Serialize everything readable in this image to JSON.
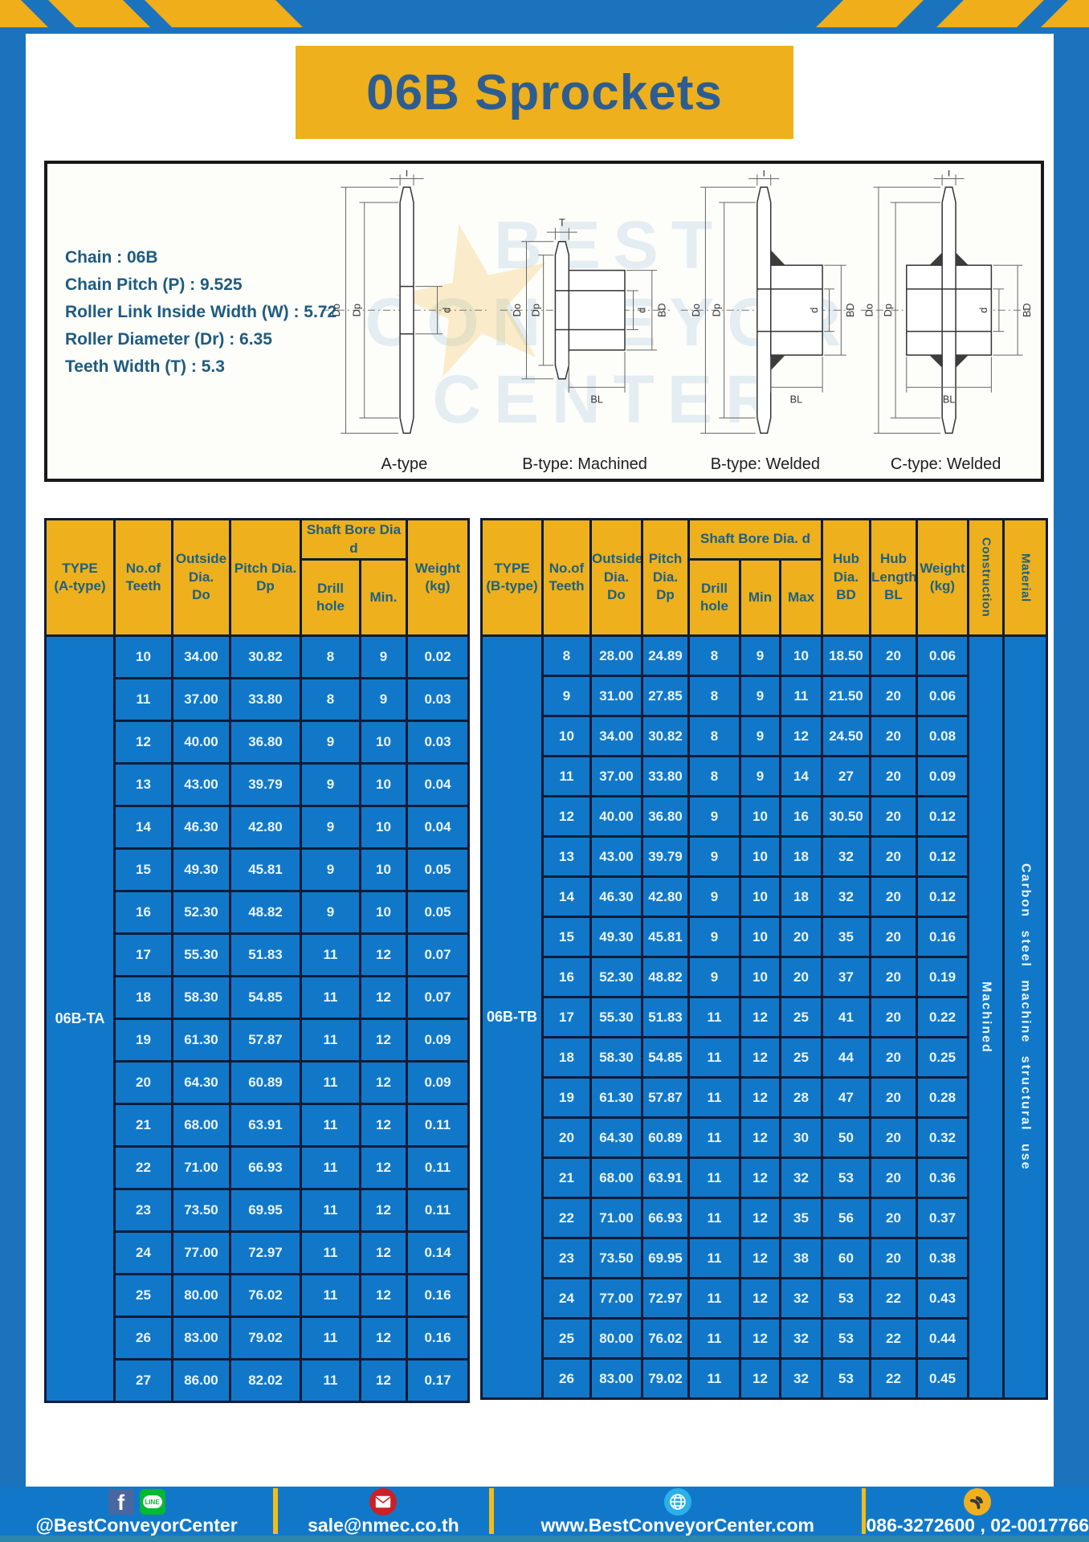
{
  "page": {
    "title": "06B Sprockets"
  },
  "specs": {
    "lines": [
      "Chain : 06B",
      "Chain Pitch (P) : 9.525",
      "Roller Link Inside Width (W) : 5.72",
      "Roller Diameter (Dr) : 6.35",
      "Teeth Width (T) : 5.3"
    ]
  },
  "watermark": {
    "lines": [
      "BEST",
      "CONVEYOR",
      "CENTER"
    ],
    "star": "★"
  },
  "diagram": {
    "dims": {
      "T": "T",
      "Do": "Do",
      "Dp": "Dp",
      "d": "d",
      "BD": "BD",
      "BL": "BL"
    },
    "figures": [
      {
        "caption": "A-type"
      },
      {
        "caption": "B-type: Machined"
      },
      {
        "caption": "B-type: Welded"
      },
      {
        "caption": "C-type: Welded"
      }
    ]
  },
  "table_a": {
    "headers": {
      "type": "TYPE\n(A-type)",
      "teeth": "No.of\nTeeth",
      "outside": "Outside\nDia.\nDo",
      "pitch": "Pitch Dia.\nDp",
      "shaft": "Shaft Bore Dia d",
      "drill": "Drill hole",
      "min": "Min.",
      "weight": "Weight\n(kg)"
    },
    "type_label": "06B-TA",
    "rows": [
      [
        "10",
        "34.00",
        "30.82",
        "8",
        "9",
        "0.02"
      ],
      [
        "11",
        "37.00",
        "33.80",
        "8",
        "9",
        "0.03"
      ],
      [
        "12",
        "40.00",
        "36.80",
        "9",
        "10",
        "0.03"
      ],
      [
        "13",
        "43.00",
        "39.79",
        "9",
        "10",
        "0.04"
      ],
      [
        "14",
        "46.30",
        "42.80",
        "9",
        "10",
        "0.04"
      ],
      [
        "15",
        "49.30",
        "45.81",
        "9",
        "10",
        "0.05"
      ],
      [
        "16",
        "52.30",
        "48.82",
        "9",
        "10",
        "0.05"
      ],
      [
        "17",
        "55.30",
        "51.83",
        "11",
        "12",
        "0.07"
      ],
      [
        "18",
        "58.30",
        "54.85",
        "11",
        "12",
        "0.07"
      ],
      [
        "19",
        "61.30",
        "57.87",
        "11",
        "12",
        "0.09"
      ],
      [
        "20",
        "64.30",
        "60.89",
        "11",
        "12",
        "0.09"
      ],
      [
        "21",
        "68.00",
        "63.91",
        "11",
        "12",
        "0.11"
      ],
      [
        "22",
        "71.00",
        "66.93",
        "11",
        "12",
        "0.11"
      ],
      [
        "23",
        "73.50",
        "69.95",
        "11",
        "12",
        "0.11"
      ],
      [
        "24",
        "77.00",
        "72.97",
        "11",
        "12",
        "0.14"
      ],
      [
        "25",
        "80.00",
        "76.02",
        "11",
        "12",
        "0.16"
      ],
      [
        "26",
        "83.00",
        "79.02",
        "11",
        "12",
        "0.16"
      ],
      [
        "27",
        "86.00",
        "82.02",
        "11",
        "12",
        "0.17"
      ]
    ]
  },
  "table_b": {
    "headers": {
      "type": "TYPE\n(B-type)",
      "teeth": "No.of\nTeeth",
      "outside": "Outside\nDia.\nDo",
      "pitch": "Pitch\nDia.\nDp",
      "shaft": "Shaft Bore Dia.  d",
      "drill": "Drill hole",
      "min": "Min",
      "max": "Max",
      "hub_dia": "Hub\nDia.\nBD",
      "hub_len": "Hub\nLength\nBL",
      "weight": "Weight\n(kg)",
      "construction": "Construction",
      "material": "Material"
    },
    "type_label": "06B-TB",
    "construction_value": "Machined",
    "material_value": "Carbon steel machine structural use",
    "rows": [
      [
        "8",
        "28.00",
        "24.89",
        "8",
        "9",
        "10",
        "18.50",
        "20",
        "0.06"
      ],
      [
        "9",
        "31.00",
        "27.85",
        "8",
        "9",
        "11",
        "21.50",
        "20",
        "0.06"
      ],
      [
        "10",
        "34.00",
        "30.82",
        "8",
        "9",
        "12",
        "24.50",
        "20",
        "0.08"
      ],
      [
        "11",
        "37.00",
        "33.80",
        "8",
        "9",
        "14",
        "27",
        "20",
        "0.09"
      ],
      [
        "12",
        "40.00",
        "36.80",
        "9",
        "10",
        "16",
        "30.50",
        "20",
        "0.12"
      ],
      [
        "13",
        "43.00",
        "39.79",
        "9",
        "10",
        "18",
        "32",
        "20",
        "0.12"
      ],
      [
        "14",
        "46.30",
        "42.80",
        "9",
        "10",
        "18",
        "32",
        "20",
        "0.12"
      ],
      [
        "15",
        "49.30",
        "45.81",
        "9",
        "10",
        "20",
        "35",
        "20",
        "0.16"
      ],
      [
        "16",
        "52.30",
        "48.82",
        "9",
        "10",
        "20",
        "37",
        "20",
        "0.19"
      ],
      [
        "17",
        "55.30",
        "51.83",
        "11",
        "12",
        "25",
        "41",
        "20",
        "0.22"
      ],
      [
        "18",
        "58.30",
        "54.85",
        "11",
        "12",
        "25",
        "44",
        "20",
        "0.25"
      ],
      [
        "19",
        "61.30",
        "57.87",
        "11",
        "12",
        "28",
        "47",
        "20",
        "0.28"
      ],
      [
        "20",
        "64.30",
        "60.89",
        "11",
        "12",
        "30",
        "50",
        "20",
        "0.32"
      ],
      [
        "21",
        "68.00",
        "63.91",
        "11",
        "12",
        "32",
        "53",
        "20",
        "0.36"
      ],
      [
        "22",
        "71.00",
        "66.93",
        "11",
        "12",
        "35",
        "56",
        "20",
        "0.37"
      ],
      [
        "23",
        "73.50",
        "69.95",
        "11",
        "12",
        "38",
        "60",
        "20",
        "0.38"
      ],
      [
        "24",
        "77.00",
        "72.97",
        "11",
        "12",
        "32",
        "53",
        "22",
        "0.43"
      ],
      [
        "25",
        "80.00",
        "76.02",
        "11",
        "12",
        "32",
        "53",
        "22",
        "0.44"
      ],
      [
        "26",
        "83.00",
        "79.02",
        "11",
        "12",
        "32",
        "53",
        "22",
        "0.45"
      ]
    ]
  },
  "footer": {
    "facebook_letter": "f",
    "line_text": "LINE",
    "social_label": "@BestConveyorCenter",
    "email": "sale@nmec.co.th",
    "website": "www.BestConveyorCenter.com",
    "phones": "086-3272600 , 02-0017766"
  },
  "colors": {
    "frame_blue": "#1a73bc",
    "stripe_yellow": "#f0ae1b",
    "header_yellow": "#eeb01c",
    "table_blue": "#1178c9",
    "border_navy": "#0e1c38",
    "title_text": "#2d5d90",
    "bottom_strip": "#2d86ab"
  }
}
